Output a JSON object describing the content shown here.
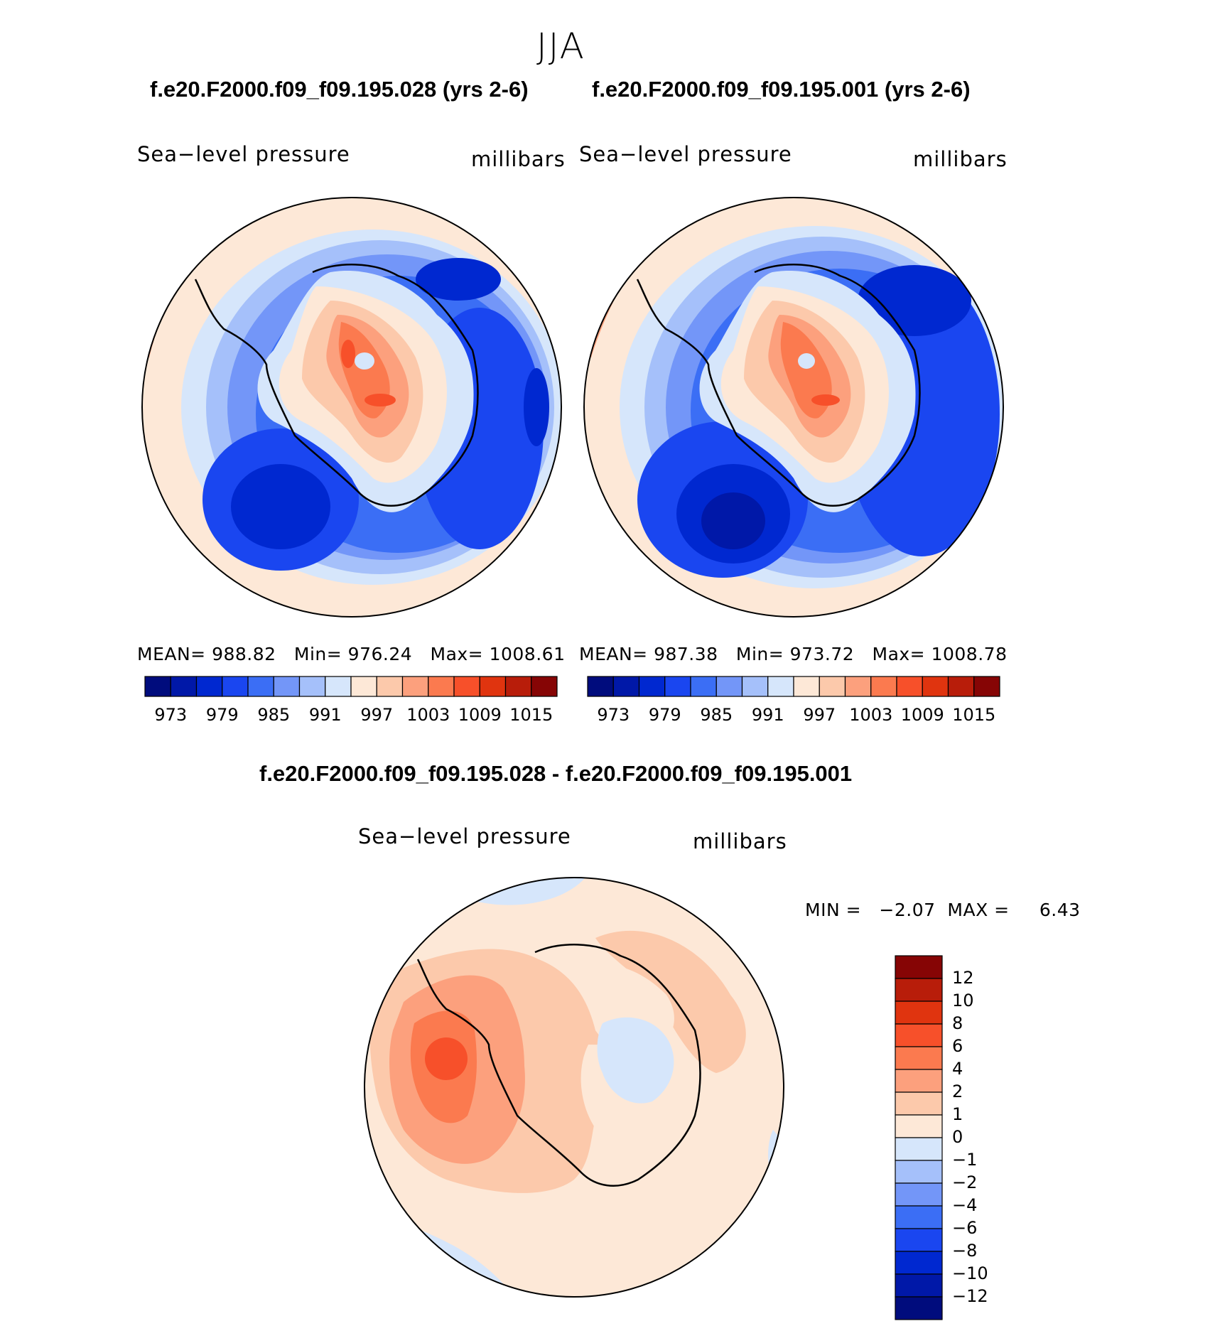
{
  "season": "JJA",
  "panels": [
    {
      "case_title": "f.e20.F2000.f09_f09.195.028 (yrs 2-6)",
      "left_label": "Sea−level pressure",
      "right_label": "millibars",
      "stats": {
        "mean_label": "MEAN=",
        "mean": "988.82",
        "min_label": "Min=",
        "min": "976.24",
        "max_label": "Max=",
        "max": "1008.61"
      }
    },
    {
      "case_title": "f.e20.F2000.f09_f09.195.001 (yrs 2-6)",
      "left_label": "Sea−level pressure",
      "right_label": "millibars",
      "stats": {
        "mean_label": "MEAN=",
        "mean": "987.38",
        "min_label": "Min=",
        "min": "973.72",
        "max_label": "Max=",
        "max": "1008.78"
      }
    }
  ],
  "abs_colorbar": {
    "colors": [
      "#000c7d",
      "#0018a8",
      "#0028d0",
      "#1a46f0",
      "#3b6ef5",
      "#7396f8",
      "#a5c0fa",
      "#d6e6fb",
      "#fde8d7",
      "#fcc9ab",
      "#fca07d",
      "#fb7a4f",
      "#f7502a",
      "#e0340f",
      "#b81d0a",
      "#860505"
    ],
    "tick_labels": [
      "973",
      "979",
      "985",
      "991",
      "997",
      "1003",
      "1009",
      "1015"
    ]
  },
  "diff": {
    "title": "f.e20.F2000.f09_f09.195.028 - f.e20.F2000.f09_f09.195.001",
    "left_label": "Sea−level pressure",
    "right_label": "millibars",
    "min_label": "MIN =",
    "min": "−2.07",
    "max_label": "MAX =",
    "max": "6.43"
  },
  "diff_colorbar": {
    "colors": [
      "#860505",
      "#b81d0a",
      "#e0340f",
      "#f7502a",
      "#fb7a4f",
      "#fca07d",
      "#fcc9ab",
      "#fde8d7",
      "#d6e6fb",
      "#a5c0fa",
      "#7396f8",
      "#3b6ef5",
      "#1a46f0",
      "#0028d0",
      "#0018a8",
      "#000c7d"
    ],
    "tick_labels": [
      "12",
      "10",
      "8",
      "6",
      "4",
      "2",
      "1",
      "0",
      "−1",
      "−2",
      "−4",
      "−6",
      "−8",
      "−10",
      "−12"
    ]
  },
  "chart_data": [
    {
      "type": "heatmap",
      "projection": "south-polar-stereographic",
      "title": "f.e20.F2000.f09_f09.195.028 (yrs 2-6)",
      "variable": "Sea-level pressure",
      "units": "millibars",
      "contour_levels": [
        973,
        976,
        979,
        982,
        985,
        988,
        991,
        994,
        997,
        1000,
        1003,
        1006,
        1009,
        1012,
        1015
      ],
      "stats": {
        "mean": 988.82,
        "min": 976.24,
        "max": 1008.61
      }
    },
    {
      "type": "heatmap",
      "projection": "south-polar-stereographic",
      "title": "f.e20.F2000.f09_f09.195.001 (yrs 2-6)",
      "variable": "Sea-level pressure",
      "units": "millibars",
      "contour_levels": [
        973,
        976,
        979,
        982,
        985,
        988,
        991,
        994,
        997,
        1000,
        1003,
        1006,
        1009,
        1012,
        1015
      ],
      "stats": {
        "mean": 987.38,
        "min": 973.72,
        "max": 1008.78
      }
    },
    {
      "type": "heatmap",
      "projection": "south-polar-stereographic",
      "title": "f.e20.F2000.f09_f09.195.028 - f.e20.F2000.f09_f09.195.001",
      "variable": "Sea-level pressure",
      "units": "millibars",
      "contour_levels": [
        -12,
        -10,
        -8,
        -6,
        -4,
        -2,
        -1,
        0,
        1,
        2,
        4,
        6,
        8,
        10,
        12
      ],
      "stats": {
        "min": -2.07,
        "max": 6.43
      }
    }
  ]
}
